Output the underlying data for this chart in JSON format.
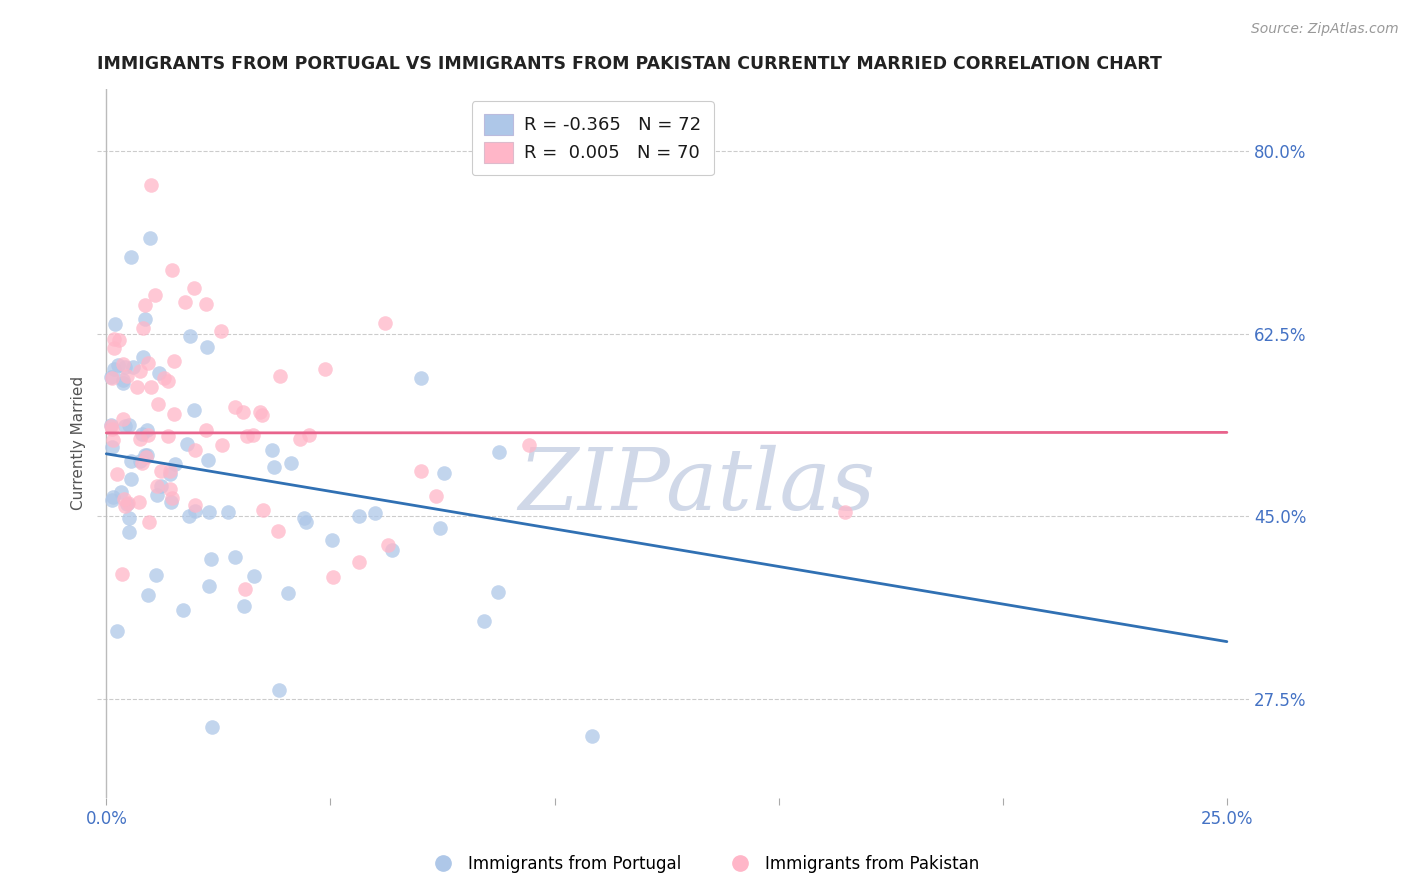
{
  "title": "IMMIGRANTS FROM PORTUGAL VS IMMIGRANTS FROM PAKISTAN CURRENTLY MARRIED CORRELATION CHART",
  "source_text": "Source: ZipAtlas.com",
  "ylabel": "Currently Married",
  "xlim": [
    -0.002,
    0.255
  ],
  "ylim": [
    0.18,
    0.86
  ],
  "yticks": [
    0.275,
    0.45,
    0.625,
    0.8
  ],
  "ytick_labels": [
    "27.5%",
    "45.0%",
    "62.5%",
    "80.0%"
  ],
  "xticks": [
    0.0,
    0.05,
    0.1,
    0.15,
    0.2,
    0.25
  ],
  "xtick_labels": [
    "0.0%",
    "",
    "",
    "",
    "",
    "25.0%"
  ],
  "color_portugal": "#aec7e8",
  "color_pakistan": "#ffb6c8",
  "color_portugal_line": "#3070b3",
  "color_pakistan_line": "#e8638c",
  "watermark_color": "#d0d8e8",
  "title_fontsize": 12.5,
  "legend_fontsize": 13,
  "source_fontsize": 10,
  "dot_size": 110,
  "dot_alpha": 0.75
}
